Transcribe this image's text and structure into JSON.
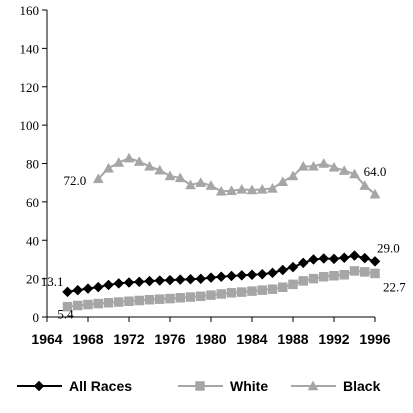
{
  "chart_data": {
    "type": "line",
    "title": "",
    "xlabel": "",
    "ylabel": "",
    "xlim": [
      1964,
      1996
    ],
    "ylim": [
      0,
      160
    ],
    "x_ticks": [
      1964,
      1968,
      1972,
      1976,
      1980,
      1984,
      1988,
      1992,
      1996
    ],
    "y_ticks": [
      0,
      20,
      40,
      60,
      80,
      100,
      120,
      140,
      160
    ],
    "grid": false,
    "legend_position": "bottom",
    "series": [
      {
        "name": "All Races",
        "marker": "diamond",
        "color": "#000000",
        "x": [
          1966,
          1967,
          1968,
          1969,
          1970,
          1971,
          1972,
          1973,
          1974,
          1975,
          1976,
          1977,
          1978,
          1979,
          1980,
          1981,
          1982,
          1983,
          1984,
          1985,
          1986,
          1987,
          1988,
          1989,
          1990,
          1991,
          1992,
          1993,
          1994,
          1995,
          1996
        ],
        "values": [
          13.1,
          14.0,
          14.8,
          15.6,
          16.7,
          17.5,
          18.0,
          18.3,
          18.7,
          19.0,
          19.2,
          19.5,
          19.7,
          19.9,
          20.5,
          21.0,
          21.4,
          21.7,
          22.0,
          22.3,
          23.0,
          24.5,
          26.0,
          28.2,
          30.0,
          30.5,
          30.3,
          30.9,
          32.0,
          30.7,
          29.0
        ],
        "labels": [
          {
            "value_index": 0,
            "text": "13.1"
          },
          {
            "value_index": 30,
            "text": "29.0"
          }
        ]
      },
      {
        "name": "White",
        "marker": "square",
        "color": "#a6a6a6",
        "x": [
          1966,
          1967,
          1968,
          1969,
          1970,
          1971,
          1972,
          1973,
          1974,
          1975,
          1976,
          1977,
          1978,
          1979,
          1980,
          1981,
          1982,
          1983,
          1984,
          1985,
          1986,
          1987,
          1988,
          1989,
          1990,
          1991,
          1992,
          1993,
          1994,
          1995,
          1996
        ],
        "values": [
          5.4,
          6.0,
          6.5,
          7.0,
          7.4,
          7.8,
          8.2,
          8.6,
          9.0,
          9.3,
          9.6,
          10.0,
          10.4,
          10.8,
          11.4,
          12.0,
          12.6,
          13.0,
          13.5,
          14.0,
          14.5,
          15.5,
          17.0,
          18.8,
          20.0,
          21.0,
          21.5,
          22.0,
          24.0,
          23.5,
          22.7
        ],
        "labels": [
          {
            "value_index": 0,
            "text": "5.4"
          },
          {
            "value_index": 30,
            "text": "22.7"
          }
        ]
      },
      {
        "name": "Black",
        "marker": "triangle",
        "color": "#a6a6a6",
        "x": [
          1969,
          1970,
          1971,
          1972,
          1973,
          1974,
          1975,
          1976,
          1977,
          1978,
          1979,
          1980,
          1981,
          1982,
          1983,
          1984,
          1985,
          1986,
          1987,
          1988,
          1989,
          1990,
          1991,
          1992,
          1993,
          1994,
          1995,
          1996
        ],
        "values": [
          72.0,
          77.5,
          80.5,
          82.8,
          81.0,
          78.5,
          76.5,
          73.5,
          72.5,
          68.8,
          70.0,
          68.5,
          65.5,
          65.8,
          66.5,
          66.2,
          66.5,
          67.0,
          70.5,
          73.5,
          78.5,
          78.5,
          80.0,
          78.0,
          76.3,
          74.5,
          68.5,
          64.0
        ],
        "labels": [
          {
            "value_index": 0,
            "text": "72.0"
          },
          {
            "value_index": 27,
            "text": "64.0"
          }
        ]
      }
    ]
  }
}
